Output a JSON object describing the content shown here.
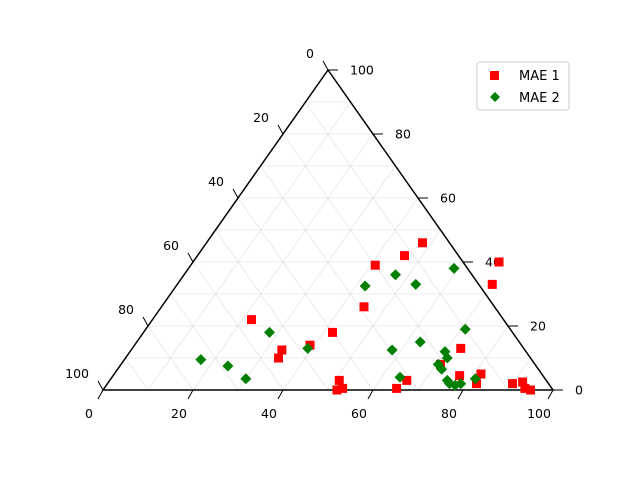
{
  "chart_data": {
    "type": "scatter",
    "subtype": "ternary",
    "title": "",
    "ticks": {
      "bottom": [
        "0",
        "20",
        "40",
        "60",
        "80",
        "100"
      ],
      "right": [
        "0",
        "20",
        "40",
        "60",
        "80",
        "100"
      ],
      "left": [
        "0",
        "20",
        "40",
        "60",
        "80",
        "100"
      ]
    },
    "grid": true,
    "legend": "top-right",
    "series": [
      {
        "name": "MAE 1",
        "color": "#ff0000",
        "marker": "square",
        "points": [
          [
            48.0,
            46.0
          ],
          [
            46.0,
            42.0
          ],
          [
            41.0,
            39.0
          ],
          [
            68.0,
            40.0
          ],
          [
            70.0,
            33.0
          ],
          [
            45.0,
            26.0
          ],
          [
            22.0,
            22.0
          ],
          [
            42.0,
            18.0
          ],
          [
            39.0,
            14.0
          ],
          [
            33.5,
            12.5
          ],
          [
            34.0,
            10.0
          ],
          [
            51.0,
            3.0
          ],
          [
            53.0,
            0.5
          ],
          [
            52.0,
            0.0
          ],
          [
            66.0,
            3.0
          ],
          [
            65.0,
            0.5
          ],
          [
            71.0,
            8.0
          ],
          [
            73.0,
            13.0
          ],
          [
            77.0,
            4.5
          ],
          [
            81.5,
            5.0
          ],
          [
            82.0,
            2.0
          ],
          [
            90.0,
            2.0
          ],
          [
            92.0,
            2.5
          ],
          [
            93.5,
            0.5
          ],
          [
            95.0,
            0.0
          ]
        ]
      },
      {
        "name": "MAE 2",
        "color": "#008000",
        "marker": "diamond",
        "points": [
          [
            59.0,
            38.0
          ],
          [
            47.0,
            36.0
          ],
          [
            53.0,
            33.0
          ],
          [
            42.0,
            32.5
          ],
          [
            71.0,
            19.0
          ],
          [
            28.0,
            18.0
          ],
          [
            63.0,
            15.0
          ],
          [
            39.0,
            13.0
          ],
          [
            58.0,
            12.5
          ],
          [
            17.0,
            9.5
          ],
          [
            24.0,
            7.5
          ],
          [
            30.0,
            3.5
          ],
          [
            64.0,
            4.0
          ],
          [
            70.0,
            12.0
          ],
          [
            71.5,
            10.0
          ],
          [
            70.5,
            8.0
          ],
          [
            72.0,
            6.5
          ],
          [
            76.0,
            2.0
          ],
          [
            77.5,
            1.5
          ],
          [
            78.5,
            2.0
          ],
          [
            81.0,
            3.5
          ],
          [
            75.0,
            3.0
          ]
        ]
      }
    ]
  }
}
